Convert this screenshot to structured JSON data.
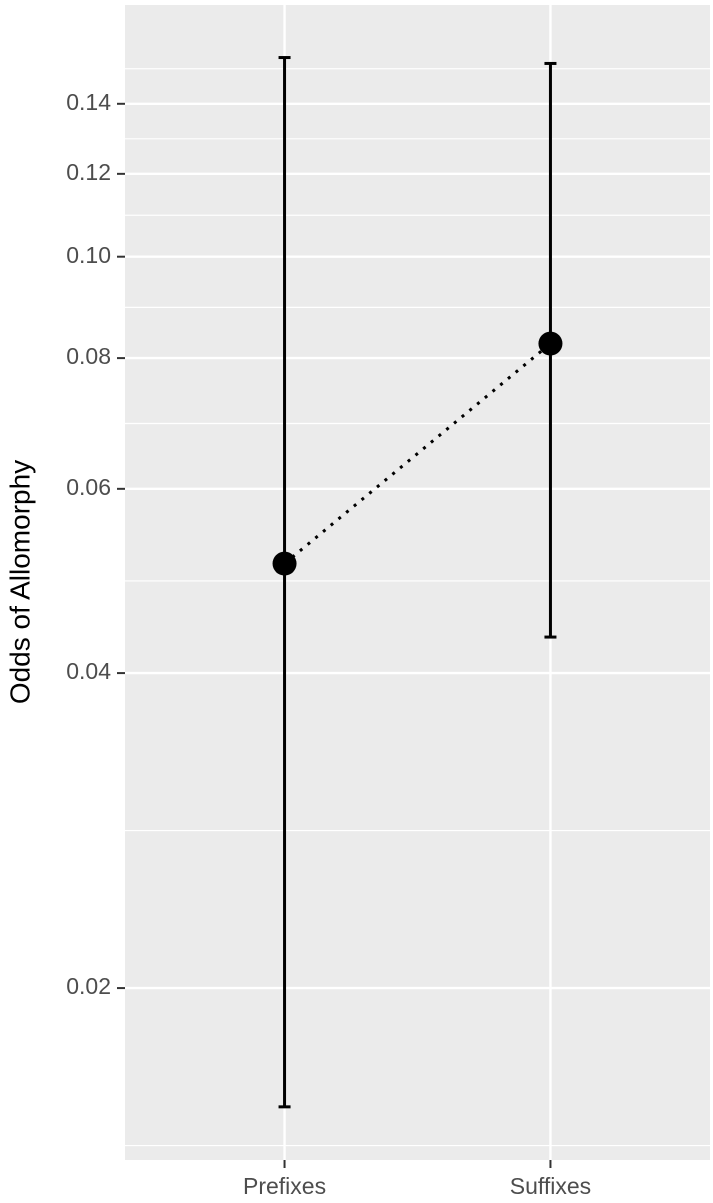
{
  "chart_data": {
    "type": "pointrange",
    "y_label": "Odds of Allomorphy",
    "categories": [
      "Prefixes",
      "Suffixes"
    ],
    "values": [
      0.0509,
      0.0826
    ],
    "lower": [
      0.0154,
      0.0433
    ],
    "upper": [
      0.155,
      0.153
    ],
    "color": "#000000",
    "line_style": "dotted",
    "ylim": [
      0.0137,
      0.174
    ],
    "log_y": true,
    "yticks": [
      0.02,
      0.04,
      0.06,
      0.08,
      {
        "value": 0.1,
        "label": "0.10"
      },
      0.12,
      0.14
    ],
    "grid": true
  }
}
